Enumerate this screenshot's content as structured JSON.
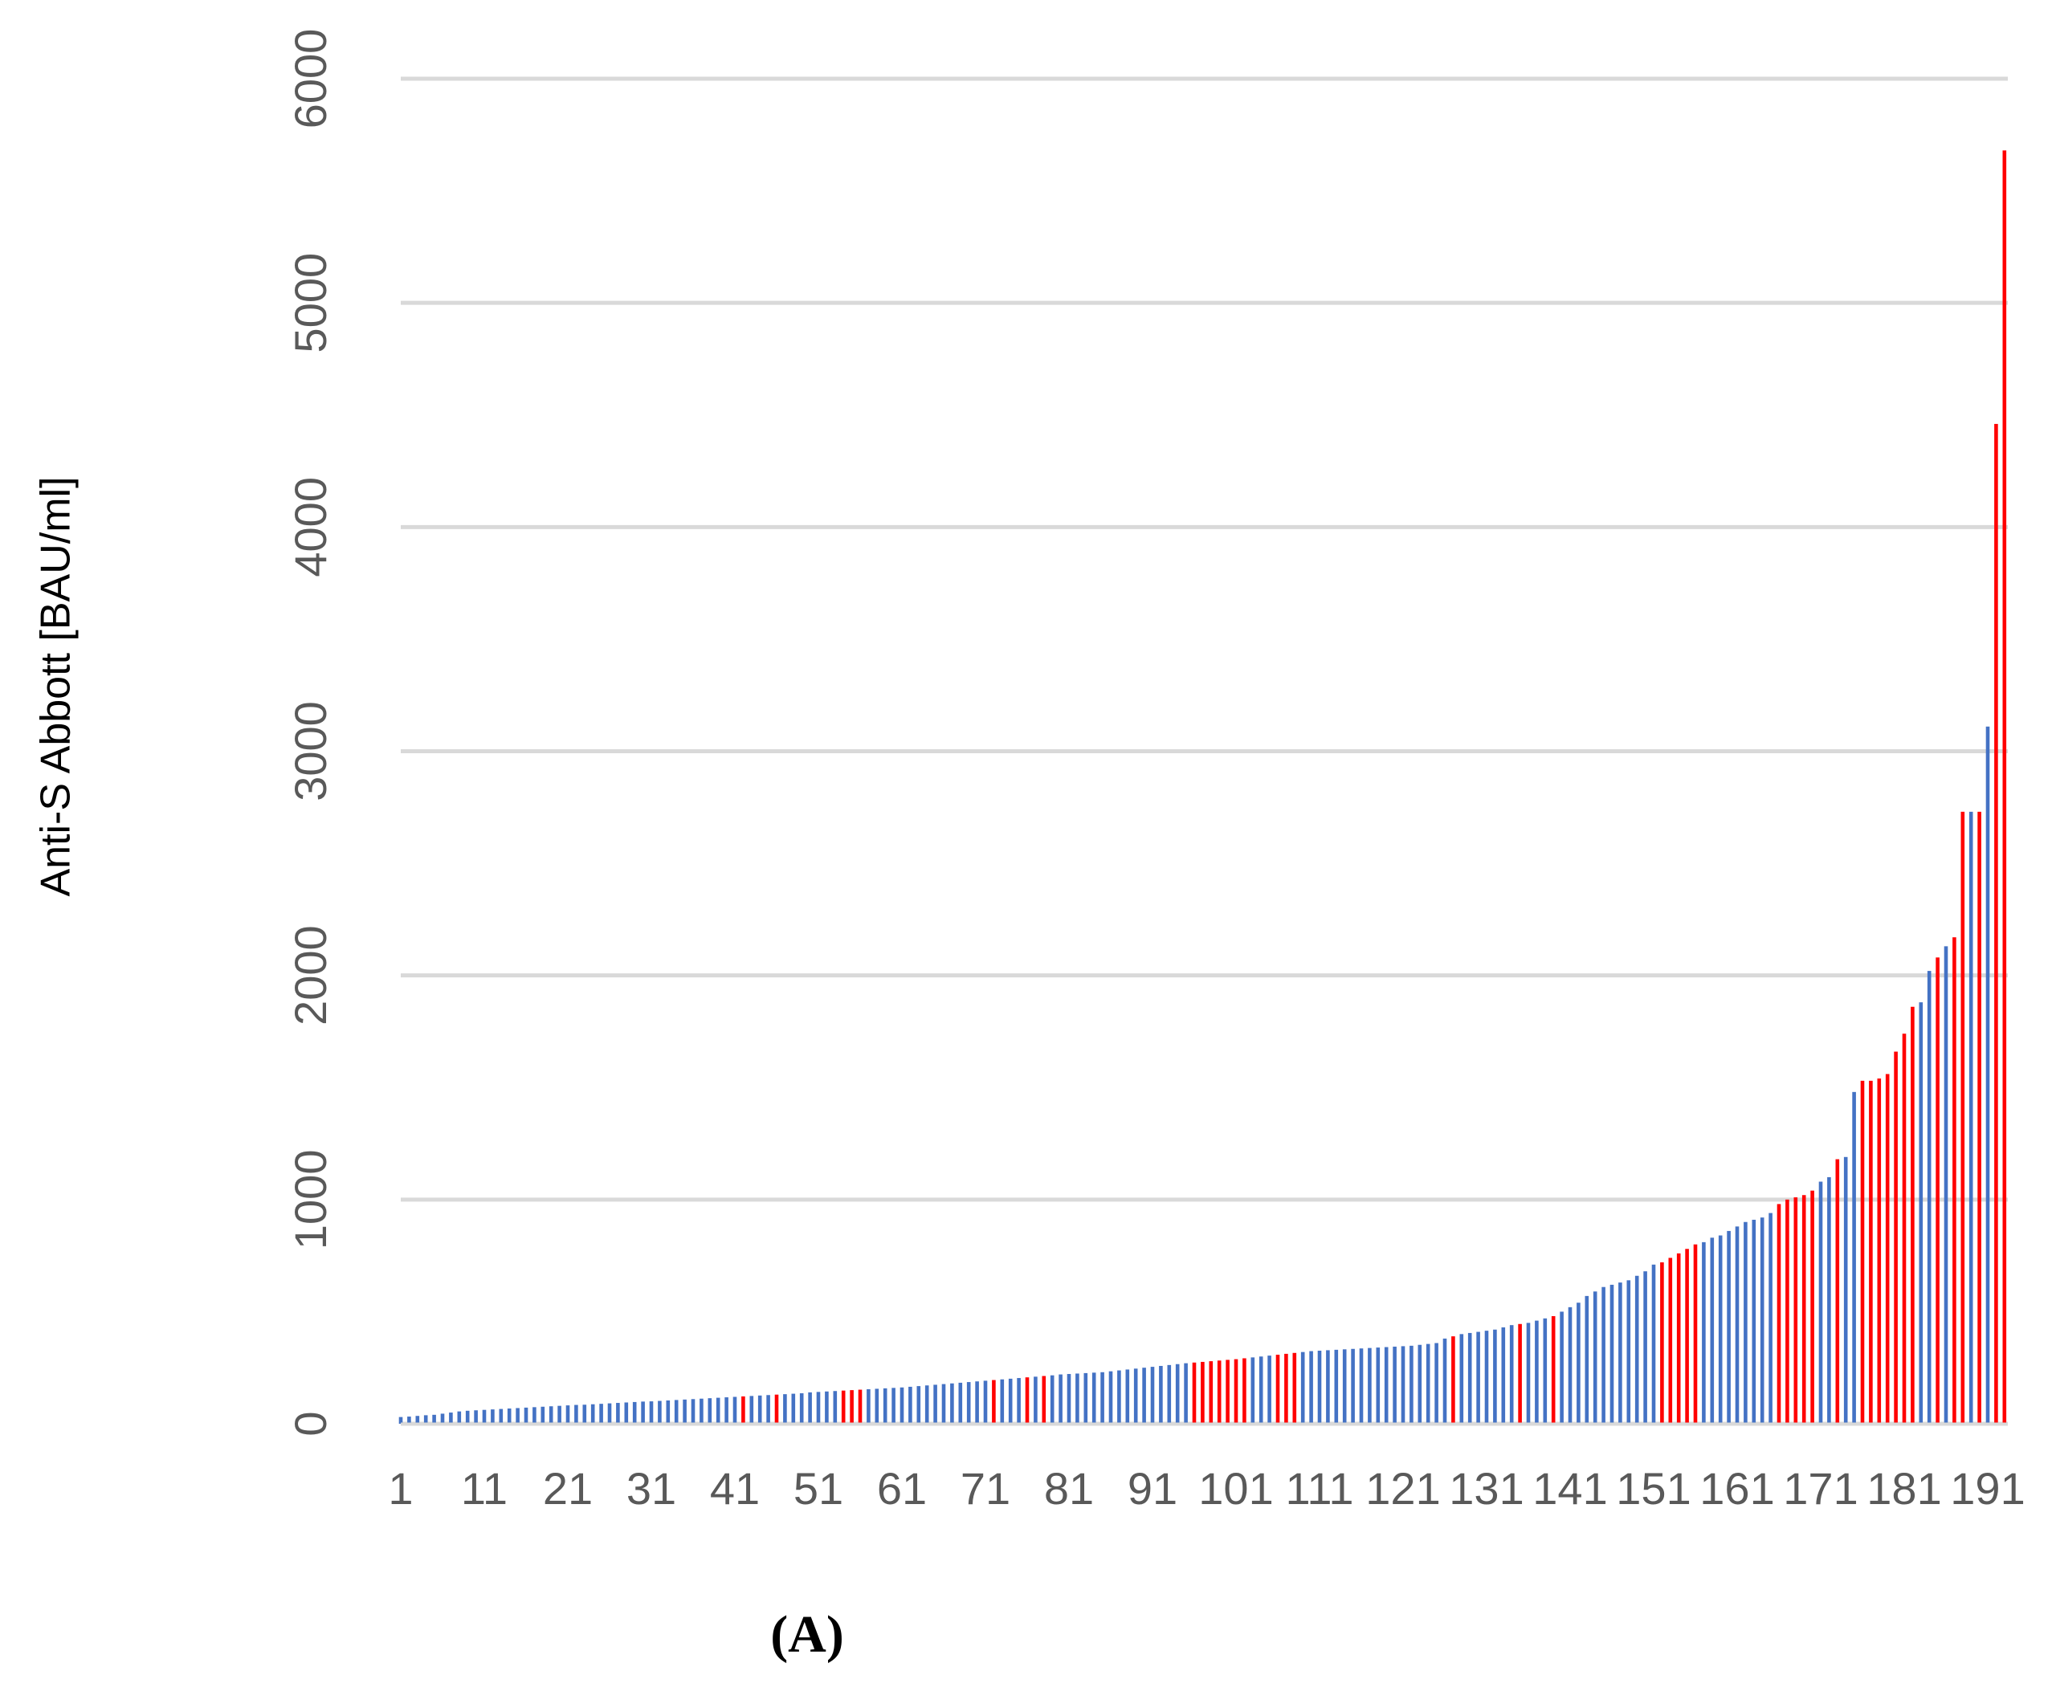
{
  "chart_data": {
    "type": "bar",
    "ylabel": "Anti-S Abbott [BAU/ml]",
    "panel_label": "(A)",
    "ylim": [
      0,
      6000
    ],
    "yticks": [
      0,
      1000,
      2000,
      3000,
      4000,
      5000,
      6000
    ],
    "grid": true,
    "categories": [
      1,
      null,
      null,
      null,
      null,
      null,
      null,
      null,
      null,
      null,
      11,
      null,
      null,
      null,
      null,
      null,
      null,
      null,
      null,
      null,
      21,
      null,
      null,
      null,
      null,
      null,
      null,
      null,
      null,
      null,
      31,
      null,
      null,
      null,
      null,
      null,
      null,
      null,
      null,
      null,
      41,
      null,
      null,
      null,
      null,
      null,
      null,
      null,
      null,
      null,
      51,
      null,
      null,
      null,
      null,
      null,
      null,
      null,
      null,
      null,
      61,
      null,
      null,
      null,
      null,
      null,
      null,
      null,
      null,
      null,
      71,
      null,
      null,
      null,
      null,
      null,
      null,
      null,
      null,
      null,
      81,
      null,
      null,
      null,
      null,
      null,
      null,
      null,
      null,
      null,
      91,
      null,
      null,
      null,
      null,
      null,
      null,
      null,
      null,
      null,
      101,
      null,
      null,
      null,
      null,
      null,
      null,
      null,
      null,
      null,
      111,
      null,
      null,
      null,
      null,
      null,
      null,
      null,
      null,
      null,
      121,
      null,
      null,
      null,
      null,
      null,
      null,
      null,
      null,
      null,
      131,
      null,
      null,
      null,
      null,
      null,
      null,
      null,
      null,
      null,
      141,
      null,
      null,
      null,
      null,
      null,
      null,
      null,
      null,
      null,
      151,
      null,
      null,
      null,
      null,
      null,
      null,
      null,
      null,
      null,
      161,
      null,
      null,
      null,
      null,
      null,
      null,
      null,
      null,
      null,
      171,
      null,
      null,
      null,
      null,
      null,
      null,
      null,
      null,
      null,
      181,
      null,
      null,
      null,
      null,
      null,
      null,
      null,
      null,
      null,
      191,
      null,
      null
    ],
    "values": [
      30,
      32,
      35,
      38,
      40,
      45,
      50,
      55,
      58,
      60,
      62,
      64,
      66,
      68,
      70,
      72,
      74,
      76,
      78,
      80,
      82,
      84,
      85,
      87,
      89,
      91,
      93,
      95,
      97,
      99,
      100,
      102,
      104,
      106,
      108,
      110,
      112,
      114,
      116,
      118,
      120,
      122,
      124,
      126,
      128,
      130,
      132,
      134,
      136,
      140,
      142,
      144,
      146,
      148,
      150,
      152,
      154,
      156,
      158,
      160,
      162,
      165,
      168,
      171,
      174,
      177,
      180,
      183,
      186,
      189,
      192,
      195,
      198,
      201,
      204,
      207,
      210,
      213,
      216,
      220,
      222,
      224,
      226,
      228,
      230,
      234,
      238,
      242,
      246,
      250,
      254,
      258,
      262,
      266,
      270,
      273,
      276,
      279,
      282,
      285,
      288,
      292,
      296,
      300,
      304,
      308,
      312,
      316,
      320,
      324,
      326,
      328,
      330,
      332,
      334,
      336,
      338,
      340,
      342,
      344,
      346,
      348,
      352,
      356,
      360,
      380,
      390,
      400,
      405,
      410,
      415,
      420,
      430,
      440,
      445,
      450,
      460,
      470,
      480,
      500,
      520,
      540,
      570,
      590,
      610,
      620,
      630,
      640,
      660,
      680,
      710,
      720,
      740,
      760,
      780,
      800,
      810,
      830,
      840,
      860,
      880,
      900,
      910,
      920,
      940,
      980,
      1000,
      1010,
      1020,
      1040,
      1080,
      1100,
      1180,
      1190,
      1480,
      1530,
      1530,
      1540,
      1560,
      1660,
      1740,
      1860,
      1880,
      2020,
      2080,
      2130,
      2170,
      2730,
      2730,
      2730,
      3110,
      4460,
      5680
    ],
    "colors": [
      "#4472c4",
      "#4472c4",
      "#4472c4",
      "#4472c4",
      "#4472c4",
      "#4472c4",
      "#4472c4",
      "#4472c4",
      "#4472c4",
      "#4472c4",
      "#4472c4",
      "#4472c4",
      "#4472c4",
      "#4472c4",
      "#4472c4",
      "#4472c4",
      "#4472c4",
      "#4472c4",
      "#4472c4",
      "#4472c4",
      "#4472c4",
      "#4472c4",
      "#4472c4",
      "#4472c4",
      "#4472c4",
      "#4472c4",
      "#4472c4",
      "#4472c4",
      "#4472c4",
      "#4472c4",
      "#4472c4",
      "#4472c4",
      "#4472c4",
      "#4472c4",
      "#4472c4",
      "#4472c4",
      "#4472c4",
      "#4472c4",
      "#4472c4",
      "#4472c4",
      "#4472c4",
      "#ff0000",
      "#4472c4",
      "#4472c4",
      "#4472c4",
      "#ff0000",
      "#4472c4",
      "#4472c4",
      "#4472c4",
      "#4472c4",
      "#4472c4",
      "#4472c4",
      "#4472c4",
      "#ff0000",
      "#ff0000",
      "#ff0000",
      "#4472c4",
      "#4472c4",
      "#4472c4",
      "#4472c4",
      "#4472c4",
      "#4472c4",
      "#4472c4",
      "#4472c4",
      "#4472c4",
      "#4472c4",
      "#4472c4",
      "#4472c4",
      "#4472c4",
      "#4472c4",
      "#4472c4",
      "#ff0000",
      "#4472c4",
      "#4472c4",
      "#4472c4",
      "#ff0000",
      "#4472c4",
      "#ff0000",
      "#4472c4",
      "#4472c4",
      "#4472c4",
      "#4472c4",
      "#4472c4",
      "#4472c4",
      "#4472c4",
      "#4472c4",
      "#4472c4",
      "#4472c4",
      "#4472c4",
      "#4472c4",
      "#4472c4",
      "#4472c4",
      "#4472c4",
      "#4472c4",
      "#4472c4",
      "#ff0000",
      "#ff0000",
      "#ff0000",
      "#ff0000",
      "#ff0000",
      "#ff0000",
      "#ff0000",
      "#4472c4",
      "#4472c4",
      "#4472c4",
      "#ff0000",
      "#ff0000",
      "#ff0000",
      "#4472c4",
      "#4472c4",
      "#4472c4",
      "#4472c4",
      "#4472c4",
      "#4472c4",
      "#4472c4",
      "#4472c4",
      "#4472c4",
      "#4472c4",
      "#4472c4",
      "#4472c4",
      "#4472c4",
      "#4472c4",
      "#4472c4",
      "#4472c4",
      "#4472c4",
      "#4472c4",
      "#ff0000",
      "#4472c4",
      "#4472c4",
      "#4472c4",
      "#4472c4",
      "#4472c4",
      "#4472c4",
      "#4472c4",
      "#ff0000",
      "#4472c4",
      "#4472c4",
      "#4472c4",
      "#ff0000",
      "#4472c4",
      "#4472c4",
      "#4472c4",
      "#4472c4",
      "#4472c4",
      "#4472c4",
      "#4472c4",
      "#4472c4",
      "#4472c4",
      "#4472c4",
      "#4472c4",
      "#4472c4",
      "#ff0000",
      "#ff0000",
      "#ff0000",
      "#ff0000",
      "#ff0000",
      "#4472c4",
      "#4472c4",
      "#4472c4",
      "#4472c4",
      "#4472c4",
      "#4472c4",
      "#4472c4",
      "#4472c4",
      "#4472c4",
      "#ff0000",
      "#ff0000",
      "#ff0000",
      "#ff0000",
      "#ff0000",
      "#4472c4",
      "#4472c4",
      "#ff0000",
      "#4472c4",
      "#4472c4",
      "#ff0000",
      "#ff0000",
      "#ff0000",
      "#ff0000",
      "#ff0000",
      "#ff0000",
      "#ff0000",
      "#4472c4",
      "#4472c4",
      "#ff0000",
      "#4472c4",
      "#ff0000",
      "#ff0000",
      "#4472c4",
      "#ff0000",
      "#4472c4",
      "#ff0000",
      "#ff0000"
    ]
  }
}
